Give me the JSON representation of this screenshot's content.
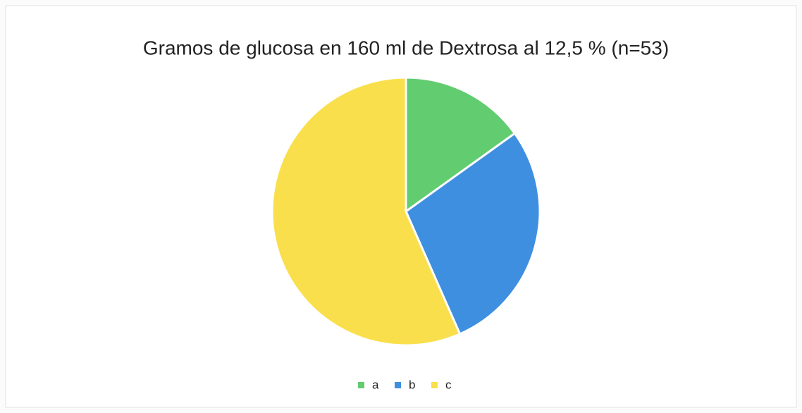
{
  "chart_data": {
    "type": "pie",
    "title": "Gramos de glucosa en 160 ml de Dextrosa al 12,5 % (n=53)",
    "categories": [
      "a",
      "b",
      "c"
    ],
    "values": [
      8,
      15,
      30
    ],
    "colors": [
      "#62cc70",
      "#3f8fe0",
      "#fadf4c"
    ],
    "legend": "bottom"
  }
}
